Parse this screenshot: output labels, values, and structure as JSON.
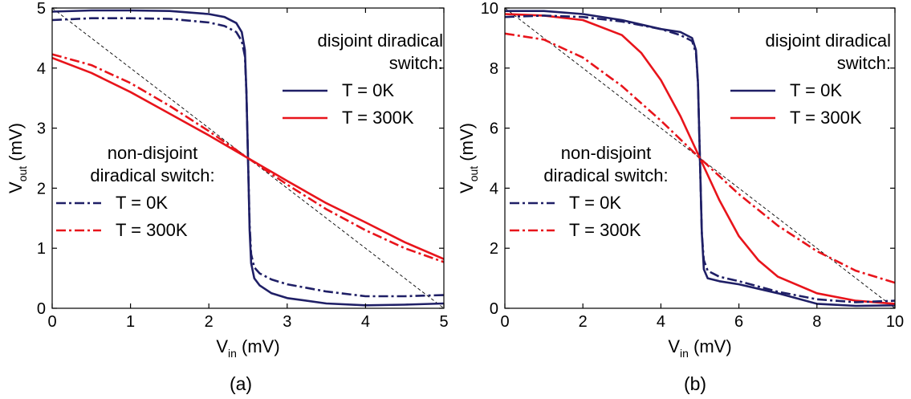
{
  "chart_data": [
    {
      "type": "line",
      "caption": "(a)",
      "xlabel": {
        "main": "V",
        "sub": "in",
        "unit": " (mV)"
      },
      "ylabel": {
        "main": "V",
        "sub": "out",
        "unit": " (mV)"
      },
      "xlim": [
        0,
        5
      ],
      "ylim": [
        0,
        5
      ],
      "xticks": [
        0,
        1,
        2,
        3,
        4,
        5
      ],
      "yticks": [
        0,
        1,
        2,
        3,
        4,
        5
      ],
      "grid": false,
      "reference_line": {
        "x": [
          0,
          5
        ],
        "y": [
          5,
          0
        ]
      },
      "legends": [
        {
          "title": [
            "disjoint diradical",
            "switch:"
          ],
          "placement": "top-right",
          "entries": [
            "T = 0K",
            "T = 300K"
          ]
        },
        {
          "title": [
            "non-disjoint",
            "diradical switch:"
          ],
          "placement": "bottom-left",
          "entries": [
            "T = 0K",
            "T = 300K"
          ]
        }
      ],
      "series": [
        {
          "legend": 0,
          "entry": 0,
          "color": "#1f1f66",
          "dash": "solid",
          "x": [
            0,
            0.5,
            1,
            1.5,
            2,
            2.2,
            2.35,
            2.42,
            2.46,
            2.48,
            2.5,
            2.52,
            2.54,
            2.58,
            2.65,
            2.8,
            3,
            3.5,
            4,
            4.5,
            5
          ],
          "y": [
            4.94,
            4.96,
            4.96,
            4.95,
            4.9,
            4.85,
            4.75,
            4.6,
            4.3,
            3.6,
            2.5,
            1.3,
            0.75,
            0.5,
            0.38,
            0.25,
            0.17,
            0.08,
            0.05,
            0.06,
            0.08
          ]
        },
        {
          "legend": 0,
          "entry": 1,
          "color": "#e8141b",
          "dash": "solid",
          "x": [
            0,
            0.5,
            1,
            1.5,
            2,
            2.5,
            3,
            3.5,
            4,
            4.5,
            5
          ],
          "y": [
            4.17,
            3.92,
            3.6,
            3.24,
            2.88,
            2.5,
            2.12,
            1.75,
            1.43,
            1.1,
            0.82
          ]
        },
        {
          "legend": 1,
          "entry": 0,
          "color": "#1f1f66",
          "dash": "dashdot",
          "x": [
            0,
            0.5,
            1,
            1.5,
            2,
            2.2,
            2.35,
            2.42,
            2.46,
            2.48,
            2.5,
            2.52,
            2.54,
            2.58,
            2.65,
            2.8,
            3,
            3.5,
            4,
            4.5,
            5
          ],
          "y": [
            4.8,
            4.83,
            4.83,
            4.82,
            4.76,
            4.7,
            4.6,
            4.45,
            4.2,
            3.6,
            2.5,
            1.4,
            0.9,
            0.68,
            0.58,
            0.48,
            0.4,
            0.28,
            0.2,
            0.2,
            0.22
          ]
        },
        {
          "legend": 1,
          "entry": 1,
          "color": "#e8141b",
          "dash": "dashdot",
          "x": [
            0,
            0.5,
            1,
            1.5,
            2,
            2.5,
            3,
            3.5,
            4,
            4.5,
            5
          ],
          "y": [
            4.23,
            4.05,
            3.75,
            3.37,
            2.95,
            2.5,
            2.06,
            1.65,
            1.3,
            1.0,
            0.77
          ]
        }
      ]
    },
    {
      "type": "line",
      "caption": "(b)",
      "xlabel": {
        "main": "V",
        "sub": "in",
        "unit": " (mV)"
      },
      "ylabel": {
        "main": "V",
        "sub": "out",
        "unit": " (mV)"
      },
      "xlim": [
        0,
        10
      ],
      "ylim": [
        0,
        10
      ],
      "xticks": [
        0,
        2,
        4,
        6,
        8,
        10
      ],
      "yticks": [
        0,
        2,
        4,
        6,
        8,
        10
      ],
      "grid": false,
      "reference_line": {
        "x": [
          0,
          10
        ],
        "y": [
          10,
          0
        ]
      },
      "legends": [
        {
          "title": [
            "disjoint diradical",
            "switch:"
          ],
          "placement": "top-right",
          "entries": [
            "T = 0K",
            "T = 300K"
          ]
        },
        {
          "title": [
            "non-disjoint",
            "diradical switch:"
          ],
          "placement": "bottom-left",
          "entries": [
            "T = 0K",
            "T = 300K"
          ]
        }
      ],
      "series": [
        {
          "legend": 0,
          "entry": 0,
          "color": "#1f1f66",
          "dash": "solid",
          "x": [
            0,
            1,
            2,
            3,
            4,
            4.5,
            4.8,
            4.9,
            4.95,
            5,
            5.05,
            5.1,
            5.2,
            5.5,
            6,
            7,
            8,
            9,
            10
          ],
          "y": [
            9.9,
            9.9,
            9.8,
            9.6,
            9.3,
            9.2,
            9.0,
            8.6,
            7.5,
            5.0,
            2.5,
            1.3,
            1.0,
            0.9,
            0.8,
            0.5,
            0.15,
            0.08,
            0.1
          ]
        },
        {
          "legend": 0,
          "entry": 1,
          "color": "#e8141b",
          "dash": "solid",
          "x": [
            0,
            1,
            2,
            3,
            3.5,
            4,
            4.5,
            5,
            5.5,
            6,
            6.5,
            7,
            8,
            9,
            10
          ],
          "y": [
            9.8,
            9.75,
            9.6,
            9.1,
            8.5,
            7.6,
            6.4,
            5.0,
            3.6,
            2.4,
            1.6,
            1.05,
            0.5,
            0.25,
            0.15
          ]
        },
        {
          "legend": 1,
          "entry": 0,
          "color": "#1f1f66",
          "dash": "dashdot",
          "x": [
            0,
            1,
            2,
            3,
            4,
            4.5,
            4.8,
            4.9,
            4.95,
            5,
            5.05,
            5.1,
            5.2,
            5.5,
            6,
            7,
            8,
            9,
            10
          ],
          "y": [
            9.7,
            9.75,
            9.7,
            9.55,
            9.3,
            9.1,
            8.9,
            8.5,
            7.5,
            5.0,
            2.5,
            1.6,
            1.25,
            1.05,
            0.9,
            0.55,
            0.3,
            0.2,
            0.25
          ]
        },
        {
          "legend": 1,
          "entry": 1,
          "color": "#e8141b",
          "dash": "dashdot",
          "x": [
            0,
            1,
            2,
            3,
            4,
            5,
            6,
            7,
            8,
            9,
            10
          ],
          "y": [
            9.15,
            8.95,
            8.35,
            7.4,
            6.25,
            5.0,
            3.8,
            2.75,
            1.9,
            1.25,
            0.85
          ]
        }
      ]
    }
  ]
}
